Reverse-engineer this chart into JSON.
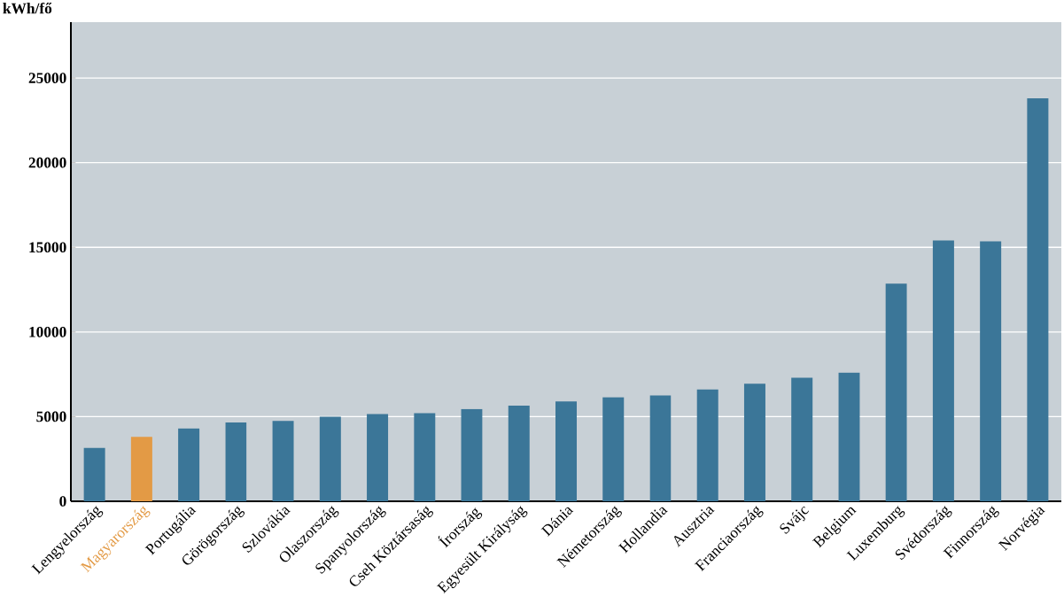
{
  "chart_data": {
    "type": "bar",
    "ylabel": "kWh/fő",
    "categories": [
      "Lengyelország",
      "Magyarország",
      "Portugália",
      "Görögország",
      "Szlovákia",
      "Olaszország",
      "Spanyolország",
      "Cseh Köztársaság",
      "Írország",
      "Egyesült Királyság",
      "Dánia",
      "Németország",
      "Hollandia",
      "Ausztria",
      "Franciaország",
      "Svájc",
      "Belgium",
      "Luxemburg",
      "Svédország",
      "Finnország",
      "Norvégia"
    ],
    "values": [
      3150,
      3800,
      4300,
      4650,
      4750,
      5000,
      5150,
      5200,
      5450,
      5650,
      5900,
      6150,
      6250,
      6600,
      6950,
      7300,
      7600,
      12850,
      15400,
      15350,
      23800
    ],
    "color": "#3b7698",
    "colors": [
      "#3b7698",
      "#e39a45",
      "#3b7698",
      "#3b7698",
      "#3b7698",
      "#3b7698",
      "#3b7698",
      "#3b7698",
      "#3b7698",
      "#3b7698",
      "#3b7698",
      "#3b7698",
      "#3b7698",
      "#3b7698",
      "#3b7698",
      "#3b7698",
      "#3b7698",
      "#3b7698",
      "#3b7698",
      "#3b7698",
      "#3b7698"
    ],
    "ylim": [
      0,
      28300
    ],
    "yticks": [
      0,
      5000,
      10000,
      15000,
      20000,
      25000
    ],
    "grid": "y"
  }
}
